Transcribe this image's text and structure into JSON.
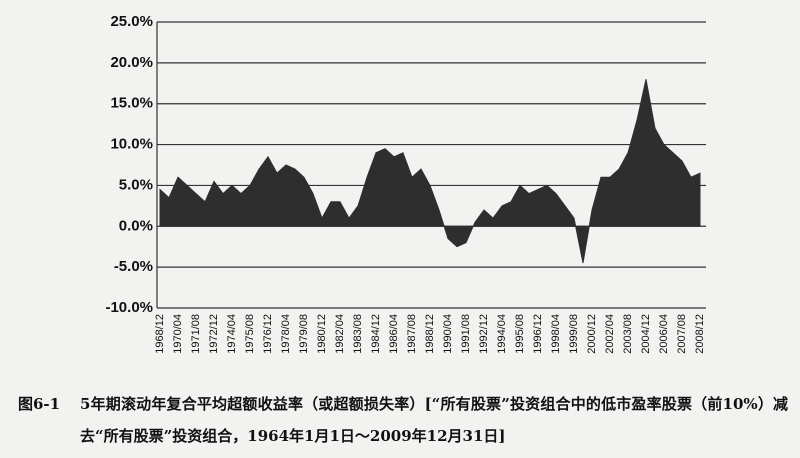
{
  "chart_data": {
    "type": "area",
    "caption_label": "图6-1",
    "title": "5年期滚动年复合平均超额收益率（或超额损失率）[“所有股票”投资组合中的低市盈率股票（前10%）减去“所有股票”投资组合，1964年1月1日～2009年12月31日]",
    "categories": [
      "1968/12",
      null,
      "1970/04",
      null,
      "1971/08",
      null,
      "1972/12",
      null,
      "1974/04",
      null,
      "1975/08",
      null,
      "1976/12",
      null,
      "1978/04",
      null,
      "1979/08",
      null,
      "1980/12",
      null,
      "1982/04",
      null,
      "1983/08",
      null,
      "1984/12",
      null,
      "1986/04",
      null,
      "1987/08",
      null,
      "1988/12",
      null,
      "1990/04",
      null,
      "1991/08",
      null,
      "1992/12",
      null,
      "1994/04",
      null,
      "1995/08",
      null,
      "1996/12",
      null,
      "1998/04",
      null,
      "1999/08",
      null,
      "2000/12",
      null,
      "2002/04",
      null,
      "2003/08",
      null,
      "2004/12",
      null,
      "2006/04",
      null,
      "2007/08",
      null,
      "2008/12"
    ],
    "series": [
      {
        "color": "#2e2e2e",
        "values": [
          4.5,
          3.5,
          6,
          5,
          4,
          3,
          5.5,
          4,
          5,
          4,
          5,
          7,
          8.5,
          6.5,
          7.5,
          7,
          6,
          4,
          1,
          3,
          3,
          1,
          2.5,
          6,
          9,
          9.5,
          8.5,
          9,
          6,
          7,
          5,
          2,
          -1.5,
          -2.5,
          -2,
          0.5,
          2,
          1,
          2.5,
          3,
          5,
          4,
          4.5,
          5,
          4,
          2.5,
          1,
          -4.5,
          2,
          6,
          6,
          7,
          9,
          13,
          18,
          12,
          10,
          9,
          8,
          6,
          6.5
        ]
      }
    ],
    "ylim": [
      -10,
      25
    ],
    "yticks": [
      {
        "value": -10,
        "label": "-10.0%"
      },
      {
        "value": -5,
        "label": "-5.0%"
      },
      {
        "value": 0,
        "label": "0.0%"
      },
      {
        "value": 5,
        "label": "5.0%"
      },
      {
        "value": 10,
        "label": "10.0%"
      },
      {
        "value": 15,
        "label": "15.0%"
      },
      {
        "value": 20,
        "label": "20.0%"
      },
      {
        "value": 25,
        "label": "25.0%"
      }
    ],
    "grid": true
  }
}
